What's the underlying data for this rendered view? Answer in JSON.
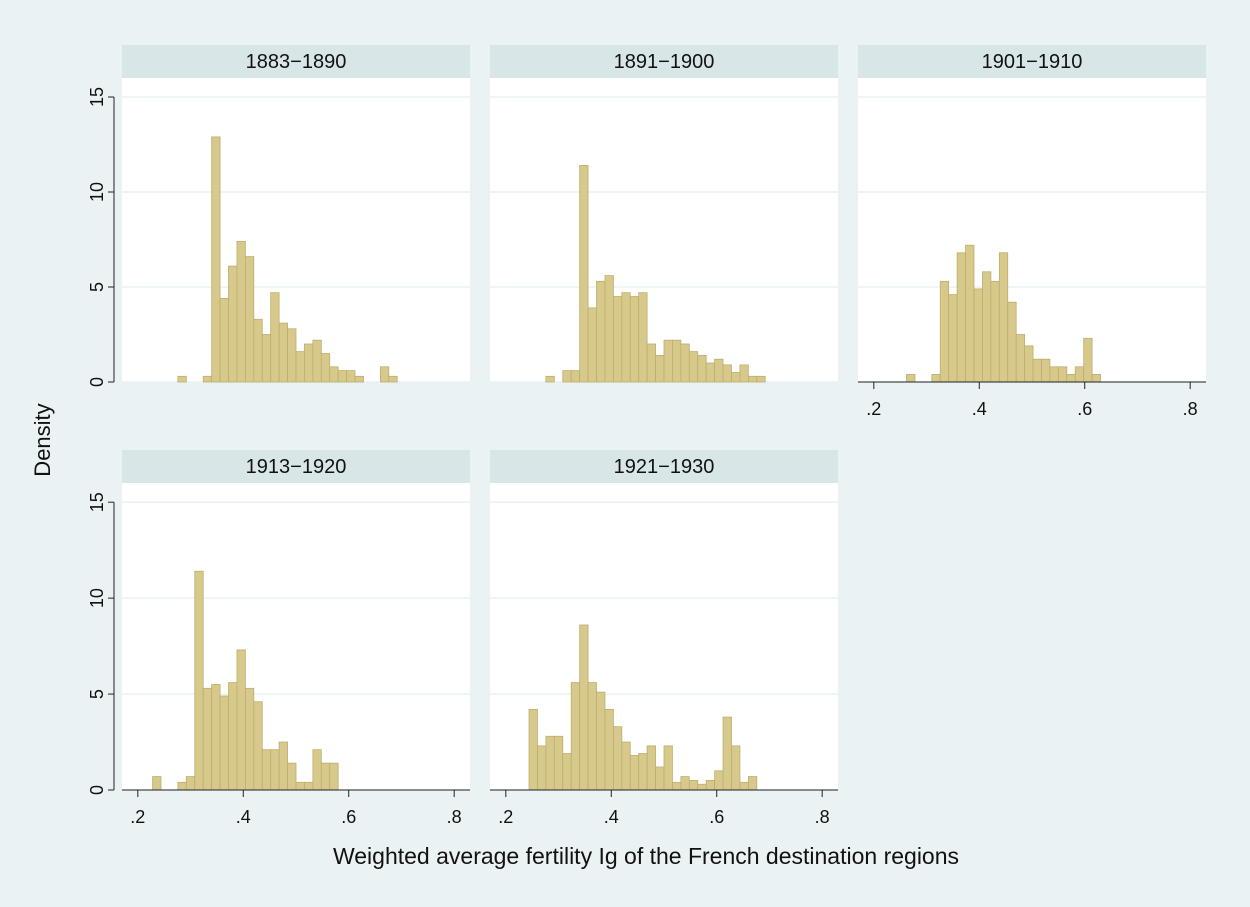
{
  "axis_titles": {
    "y": "Density",
    "x": "Weighted average fertility Ig of the French destination regions"
  },
  "chart_data": [
    {
      "type": "histogram",
      "title": "1883−1890",
      "color": "#d7c98c",
      "edge_color": "#bfae6c",
      "grid": true,
      "xlim": [
        0.17,
        0.83
      ],
      "ylim": [
        0,
        16
      ],
      "yticks": [
        0,
        5,
        10,
        15
      ],
      "bins": [
        0.276,
        0.292,
        0.308,
        0.324,
        0.34,
        0.356,
        0.372,
        0.388,
        0.404,
        0.42,
        0.436,
        0.452,
        0.468,
        0.484,
        0.5,
        0.516,
        0.532,
        0.548,
        0.564,
        0.58,
        0.596,
        0.612,
        0.628,
        0.644,
        0.66,
        0.676,
        0.692
      ],
      "values": [
        0.3,
        0,
        0,
        0.3,
        12.9,
        4.4,
        6.1,
        7.4,
        6.6,
        3.3,
        2.5,
        4.7,
        3.1,
        2.8,
        1.6,
        2.0,
        2.2,
        1.5,
        0.8,
        0.6,
        0.6,
        0.3,
        0,
        0,
        0.8,
        0.3
      ]
    },
    {
      "type": "histogram",
      "title": "1891−1900",
      "color": "#d7c98c",
      "edge_color": "#bfae6c",
      "grid": true,
      "xlim": [
        0.17,
        0.83
      ],
      "ylim": [
        0,
        16
      ],
      "yticks": [
        0,
        5,
        10,
        15
      ],
      "bins": [
        0.276,
        0.292,
        0.308,
        0.324,
        0.34,
        0.356,
        0.372,
        0.388,
        0.404,
        0.42,
        0.436,
        0.452,
        0.468,
        0.484,
        0.5,
        0.516,
        0.532,
        0.548,
        0.564,
        0.58,
        0.596,
        0.612,
        0.628,
        0.644,
        0.66,
        0.676,
        0.692
      ],
      "values": [
        0.3,
        0,
        0.6,
        0.6,
        11.4,
        3.9,
        5.3,
        5.6,
        4.5,
        4.7,
        4.5,
        4.7,
        2.0,
        1.4,
        2.2,
        2.2,
        2.0,
        1.6,
        1.4,
        1.0,
        1.2,
        0.9,
        0.5,
        0.9,
        0.3,
        0.3
      ]
    },
    {
      "type": "histogram",
      "title": "1901−1910",
      "color": "#d7c98c",
      "edge_color": "#bfae6c",
      "grid": true,
      "xlim": [
        0.17,
        0.83
      ],
      "ylim": [
        0,
        16
      ],
      "yticks": [
        0,
        5,
        10,
        15
      ],
      "xticks": [
        {
          "value": 0.2,
          "label": ".2"
        },
        {
          "value": 0.4,
          "label": ".4"
        },
        {
          "value": 0.6,
          "label": ".6"
        },
        {
          "value": 0.8,
          "label": ".8"
        }
      ],
      "bins": [
        0.262,
        0.278,
        0.294,
        0.31,
        0.326,
        0.342,
        0.358,
        0.374,
        0.39,
        0.406,
        0.422,
        0.438,
        0.454,
        0.47,
        0.486,
        0.502,
        0.518,
        0.534,
        0.55,
        0.566,
        0.582,
        0.598,
        0.614,
        0.63
      ],
      "values": [
        0.4,
        0,
        0,
        0.4,
        5.3,
        4.6,
        6.8,
        7.2,
        4.9,
        5.8,
        5.3,
        6.8,
        4.2,
        2.5,
        1.9,
        1.2,
        1.2,
        0.8,
        0.8,
        0.4,
        0.8,
        2.3,
        0.4
      ]
    },
    {
      "type": "histogram",
      "title": "1913−1920",
      "color": "#d7c98c",
      "edge_color": "#bfae6c",
      "grid": true,
      "xlim": [
        0.17,
        0.83
      ],
      "ylim": [
        0,
        16
      ],
      "yticks": [
        0,
        5,
        10,
        15
      ],
      "xticks": [
        {
          "value": 0.2,
          "label": ".2"
        },
        {
          "value": 0.4,
          "label": ".4"
        },
        {
          "value": 0.6,
          "label": ".6"
        },
        {
          "value": 0.8,
          "label": ".8"
        }
      ],
      "bins": [
        0.228,
        0.244,
        0.26,
        0.276,
        0.292,
        0.308,
        0.324,
        0.34,
        0.356,
        0.372,
        0.388,
        0.404,
        0.42,
        0.436,
        0.452,
        0.468,
        0.484,
        0.5,
        0.516,
        0.532,
        0.548,
        0.564,
        0.58
      ],
      "values": [
        0.7,
        0,
        0,
        0.4,
        0.7,
        11.4,
        5.3,
        5.5,
        4.9,
        5.6,
        7.3,
        5.3,
        4.6,
        2.1,
        2.1,
        2.5,
        1.4,
        0.4,
        0.4,
        2.1,
        1.4,
        1.4
      ]
    },
    {
      "type": "histogram",
      "title": "1921−1930",
      "color": "#d7c98c",
      "edge_color": "#bfae6c",
      "grid": true,
      "xlim": [
        0.17,
        0.83
      ],
      "ylim": [
        0,
        16
      ],
      "yticks": [
        0,
        5,
        10,
        15
      ],
      "xticks": [
        {
          "value": 0.2,
          "label": ".2"
        },
        {
          "value": 0.4,
          "label": ".4"
        },
        {
          "value": 0.6,
          "label": ".6"
        },
        {
          "value": 0.8,
          "label": ".8"
        }
      ],
      "bins": [
        0.244,
        0.26,
        0.276,
        0.292,
        0.308,
        0.324,
        0.34,
        0.356,
        0.372,
        0.388,
        0.404,
        0.42,
        0.436,
        0.452,
        0.468,
        0.484,
        0.5,
        0.516,
        0.532,
        0.548,
        0.564,
        0.58,
        0.596,
        0.612,
        0.628,
        0.644,
        0.66,
        0.676
      ],
      "values": [
        4.2,
        2.3,
        2.8,
        2.8,
        1.9,
        5.6,
        8.6,
        5.6,
        5.1,
        4.2,
        3.3,
        2.5,
        1.8,
        1.9,
        2.3,
        1.2,
        2.3,
        0.4,
        0.7,
        0.5,
        0.3,
        0.5,
        1.0,
        3.8,
        2.3,
        0.4,
        0.7
      ]
    }
  ]
}
